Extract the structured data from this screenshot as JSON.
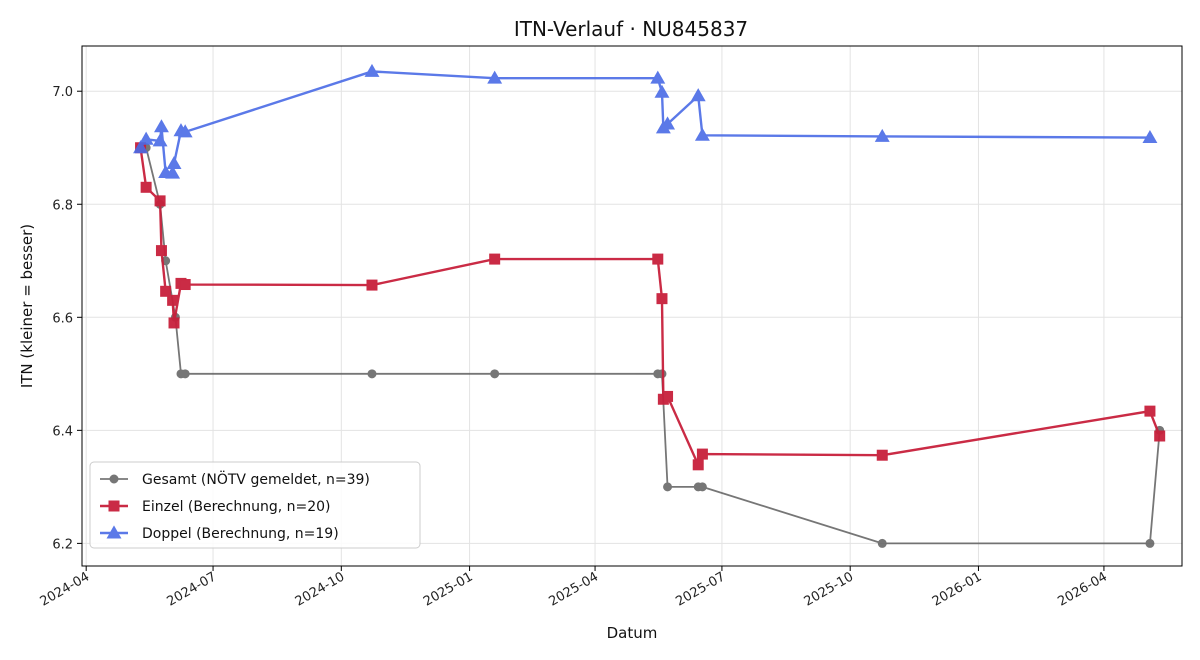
{
  "chart_data": {
    "type": "line",
    "title": "ITN-Verlauf · NU845837",
    "xlabel": "Datum",
    "ylabel": "ITN  (kleiner = besser)",
    "ylim": [
      6.16,
      7.08
    ],
    "xlim": [
      "2024-03-29",
      "2026-05-27"
    ],
    "y_ticks": [
      6.2,
      6.4,
      6.6,
      6.8,
      7.0
    ],
    "y_tick_labels": [
      "6.2",
      "6.4",
      "6.6",
      "6.8",
      "7.0"
    ],
    "x_ticks": [
      "2024-04-01",
      "2024-07-01",
      "2024-10-01",
      "2025-01-01",
      "2025-04-01",
      "2025-07-01",
      "2025-10-01",
      "2026-01-01",
      "2026-04-01"
    ],
    "x_tick_labels": [
      "2024-04",
      "2024-07",
      "2024-10",
      "2025-01",
      "2025-04",
      "2025-07",
      "2025-10",
      "2026-01",
      "2026-04"
    ],
    "grid": true,
    "legend_position": "bottom-left",
    "series": [
      {
        "name": "Gesamt (NÖTV gemeldet, n=39)",
        "color": "#555555",
        "marker": "circle",
        "points": [
          {
            "x": "2024-05-10",
            "y": 6.9
          },
          {
            "x": "2024-05-14",
            "y": 6.9
          },
          {
            "x": "2024-05-24",
            "y": 6.8
          },
          {
            "x": "2024-05-28",
            "y": 6.7
          },
          {
            "x": "2024-06-04",
            "y": 6.6
          },
          {
            "x": "2024-06-08",
            "y": 6.5
          },
          {
            "x": "2024-06-11",
            "y": 6.5
          },
          {
            "x": "2024-10-23",
            "y": 6.5
          },
          {
            "x": "2025-01-19",
            "y": 6.5
          },
          {
            "x": "2025-05-16",
            "y": 6.5
          },
          {
            "x": "2025-05-19",
            "y": 6.5
          },
          {
            "x": "2025-05-23",
            "y": 6.3
          },
          {
            "x": "2025-06-14",
            "y": 6.3
          },
          {
            "x": "2025-06-17",
            "y": 6.3
          },
          {
            "x": "2025-10-24",
            "y": 6.2
          },
          {
            "x": "2026-05-04",
            "y": 6.2
          },
          {
            "x": "2026-05-11",
            "y": 6.4
          }
        ]
      },
      {
        "name": "Einzel (Berechnung, n=20)",
        "color": "#c8203c",
        "marker": "square",
        "points": [
          {
            "x": "2024-05-10",
            "y": 6.9
          },
          {
            "x": "2024-05-14",
            "y": 6.83
          },
          {
            "x": "2024-05-24",
            "y": 6.806
          },
          {
            "x": "2024-05-25",
            "y": 6.718
          },
          {
            "x": "2024-05-28",
            "y": 6.646
          },
          {
            "x": "2024-06-02",
            "y": 6.63
          },
          {
            "x": "2024-06-03",
            "y": 6.59
          },
          {
            "x": "2024-06-08",
            "y": 6.66
          },
          {
            "x": "2024-06-11",
            "y": 6.658
          },
          {
            "x": "2024-10-23",
            "y": 6.657
          },
          {
            "x": "2025-01-19",
            "y": 6.703
          },
          {
            "x": "2025-05-16",
            "y": 6.703
          },
          {
            "x": "2025-05-19",
            "y": 6.633
          },
          {
            "x": "2025-05-20",
            "y": 6.455
          },
          {
            "x": "2025-05-23",
            "y": 6.46
          },
          {
            "x": "2025-06-14",
            "y": 6.339
          },
          {
            "x": "2025-06-17",
            "y": 6.358
          },
          {
            "x": "2025-10-24",
            "y": 6.356
          },
          {
            "x": "2026-05-04",
            "y": 6.434
          },
          {
            "x": "2026-05-11",
            "y": 6.39
          }
        ]
      },
      {
        "name": "Doppel (Berechnung, n=19)",
        "color": "#4a6be6",
        "marker": "triangle",
        "points": [
          {
            "x": "2024-05-10",
            "y": 6.9
          },
          {
            "x": "2024-05-14",
            "y": 6.915
          },
          {
            "x": "2024-05-24",
            "y": 6.912
          },
          {
            "x": "2024-05-25",
            "y": 6.937
          },
          {
            "x": "2024-05-28",
            "y": 6.856
          },
          {
            "x": "2024-06-02",
            "y": 6.855
          },
          {
            "x": "2024-06-03",
            "y": 6.872
          },
          {
            "x": "2024-06-08",
            "y": 6.93
          },
          {
            "x": "2024-06-11",
            "y": 6.928
          },
          {
            "x": "2024-10-23",
            "y": 7.035
          },
          {
            "x": "2025-01-19",
            "y": 7.023
          },
          {
            "x": "2025-05-16",
            "y": 7.023
          },
          {
            "x": "2025-05-19",
            "y": 6.998
          },
          {
            "x": "2025-05-20",
            "y": 6.935
          },
          {
            "x": "2025-05-23",
            "y": 6.942
          },
          {
            "x": "2025-06-14",
            "y": 6.992
          },
          {
            "x": "2025-06-17",
            "y": 6.922
          },
          {
            "x": "2025-10-24",
            "y": 6.92
          },
          {
            "x": "2026-05-04",
            "y": 6.918
          }
        ]
      }
    ]
  }
}
